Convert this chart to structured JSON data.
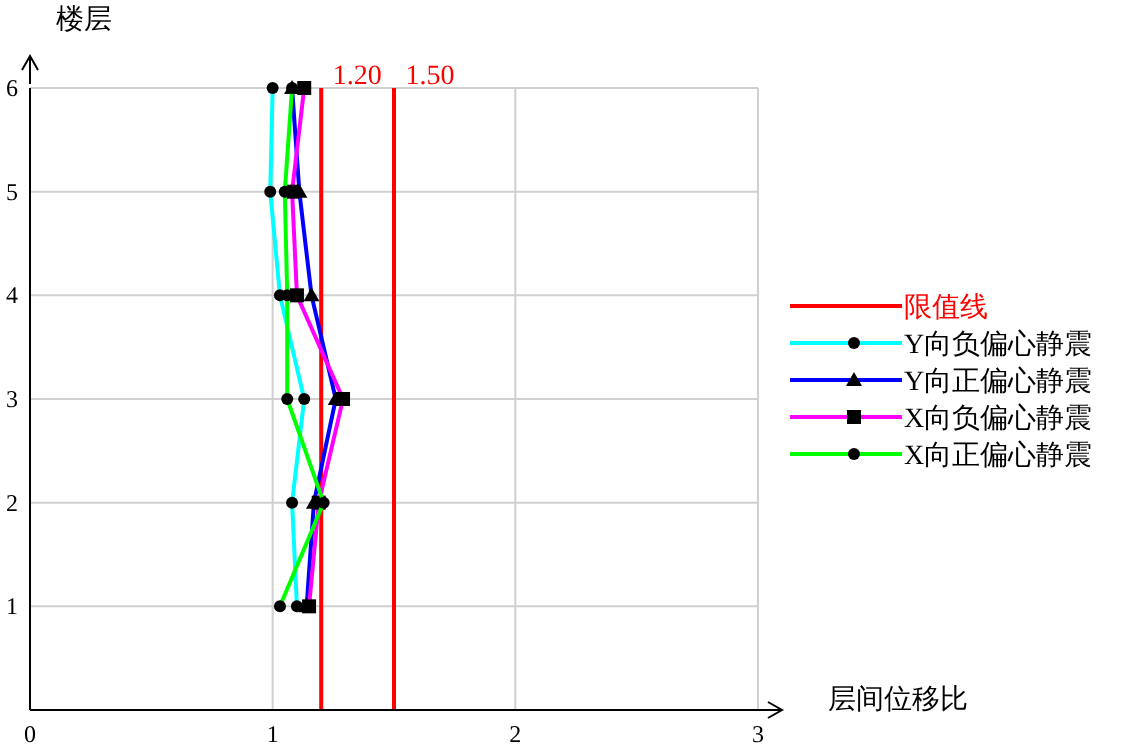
{
  "chart_data": {
    "type": "line",
    "xlabel": "层间位移比",
    "ylabel": "楼层",
    "xlim": [
      0,
      3
    ],
    "xticks": [
      0,
      1,
      2,
      3
    ],
    "ylim": [
      0,
      6
    ],
    "yticks": [
      1,
      2,
      3,
      4,
      5,
      6
    ],
    "grid": true,
    "legend": "right",
    "series": [
      {
        "name": "限值线",
        "color": "#ff0000",
        "marker": "none",
        "x": [
          1.2,
          1.2,
          null,
          1.5,
          1.5
        ],
        "values": [
          0,
          6,
          null,
          0,
          6
        ]
      },
      {
        "name": "Y向负偏心静震",
        "color": "#00ffff",
        "marker": "circle",
        "x": [
          1.1,
          1.08,
          1.13,
          1.03,
          0.99,
          1.0
        ],
        "values": [
          1,
          2,
          3,
          4,
          5,
          6
        ]
      },
      {
        "name": "Y向正偏心静震",
        "color": "#0000ff",
        "marker": "triangle",
        "x": [
          1.14,
          1.17,
          1.26,
          1.16,
          1.11,
          1.08
        ],
        "values": [
          1,
          2,
          3,
          4,
          5,
          6
        ]
      },
      {
        "name": "X向负偏心静震",
        "color": "#ff00ff",
        "marker": "square",
        "x": [
          1.15,
          1.19,
          1.29,
          1.1,
          1.08,
          1.13
        ],
        "values": [
          1,
          2,
          3,
          4,
          5,
          6
        ]
      },
      {
        "name": "X向正偏心静震",
        "color": "#00ff00",
        "marker": "circle",
        "x": [
          1.03,
          1.21,
          1.06,
          1.06,
          1.05,
          1.08
        ],
        "values": [
          1,
          2,
          3,
          4,
          5,
          6
        ]
      }
    ],
    "annotations": [
      {
        "text": "1.20",
        "x": 1.2,
        "y": 6
      },
      {
        "text": "1.50",
        "x": 1.5,
        "y": 6
      }
    ]
  }
}
